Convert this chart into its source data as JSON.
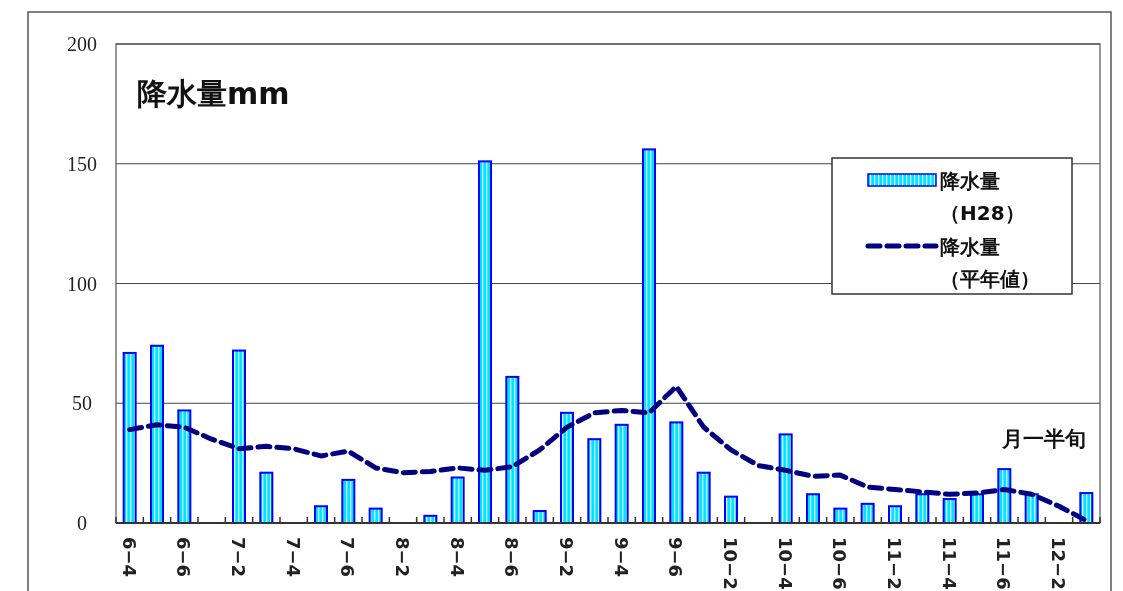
{
  "chart_data": {
    "type": "bar",
    "title": "降水量mm",
    "xlabel": "月一半旬",
    "categories": [
      "6−4",
      null,
      "6−6",
      null,
      "7−2",
      null,
      "7−4",
      null,
      "7−6",
      null,
      "8−2",
      null,
      "8−4",
      null,
      "8−6",
      null,
      "9−2",
      null,
      "9−4",
      null,
      "9−6",
      null,
      "10−2",
      null,
      "10−4",
      null,
      "10−6",
      null,
      "11−2",
      null,
      "11−4",
      null,
      "11−6",
      null,
      "12−2",
      null
    ],
    "series": [
      {
        "name": "降水量（H28）",
        "color": "#0000ff",
        "values": [
          71,
          74,
          47,
          0,
          72,
          21,
          0,
          7,
          18,
          6,
          0,
          3,
          19,
          151,
          61,
          5,
          46,
          35,
          41,
          156,
          42,
          21,
          11,
          0,
          37,
          12,
          6,
          8,
          7,
          12,
          10,
          12,
          22.5,
          12,
          0,
          12.5
        ]
      },
      {
        "name": "降水量（平年値）",
        "type": "line",
        "color": "#000080",
        "line_style": "dashed",
        "values": [
          39,
          41,
          40,
          35,
          31,
          32,
          31,
          28,
          30,
          23,
          21,
          21.5,
          23,
          22,
          23.5,
          30.5,
          40,
          46,
          47,
          46,
          57,
          40,
          30.5,
          24,
          22,
          19.5,
          20,
          15,
          14,
          13,
          12,
          12.5,
          14,
          12,
          7,
          1
        ]
      }
    ],
    "ylim": [
      0,
      200
    ],
    "yticks": [
      0,
      50,
      100,
      150,
      200
    ],
    "grid": "y",
    "legend": "top right"
  }
}
